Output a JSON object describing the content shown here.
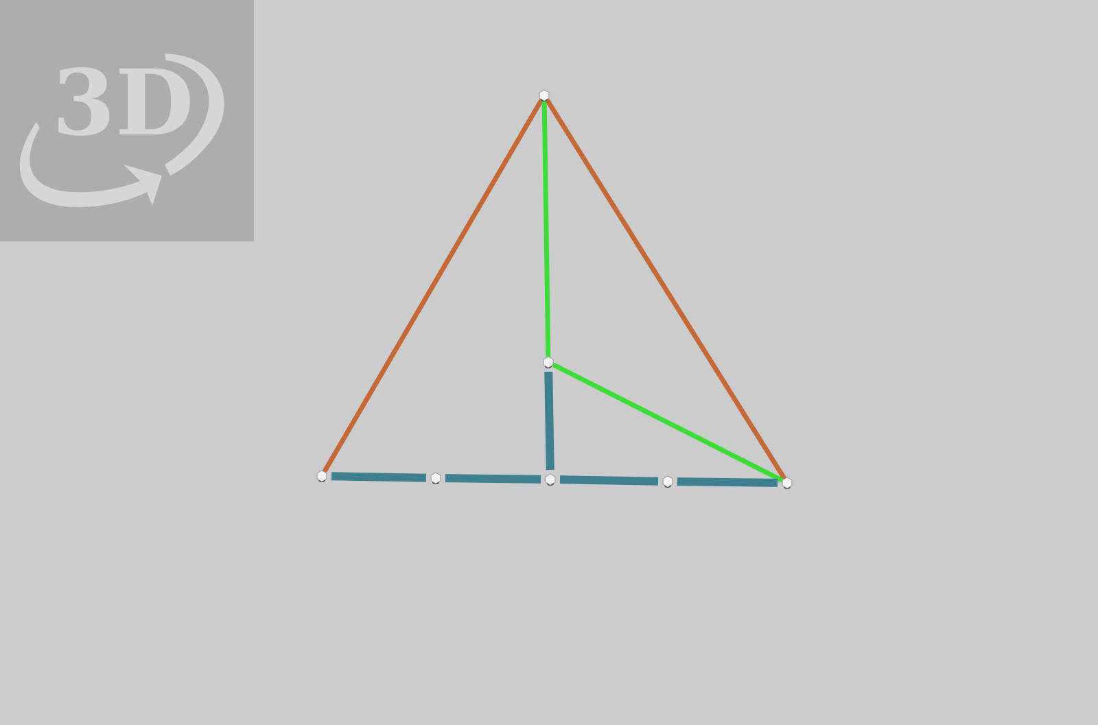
{
  "badge": {
    "label": "3D",
    "icon": "rotate-3d-icon",
    "color": "#d6d6d6"
  },
  "scene": {
    "background": "#cccccc",
    "edge_colors": {
      "slant_edge": "#c4693a",
      "highlight_edge": "#3ddc3a",
      "base_edge": "#3f8090",
      "vertex": "#f2f2f2"
    },
    "edges": [
      {
        "name": "slant-edge-left",
        "from": "apex",
        "to": "base-left",
        "kind": "slant_edge"
      },
      {
        "name": "slant-edge-right",
        "from": "apex",
        "to": "base-right",
        "kind": "slant_edge"
      },
      {
        "name": "height-segment",
        "from": "apex",
        "to": "center",
        "kind": "highlight_edge"
      },
      {
        "name": "apothem-segment",
        "from": "center",
        "to": "base-right",
        "kind": "highlight_edge"
      },
      {
        "name": "base-segment-1",
        "from": "base-left",
        "to": "base-q1",
        "kind": "base_edge"
      },
      {
        "name": "base-segment-2",
        "from": "base-q1",
        "to": "base-mid",
        "kind": "base_edge"
      },
      {
        "name": "base-segment-3",
        "from": "base-mid",
        "to": "base-q3",
        "kind": "base_edge"
      },
      {
        "name": "base-segment-4",
        "from": "base-q3",
        "to": "base-right",
        "kind": "base_edge"
      },
      {
        "name": "median-segment",
        "from": "center",
        "to": "base-mid",
        "kind": "base_edge"
      }
    ]
  }
}
